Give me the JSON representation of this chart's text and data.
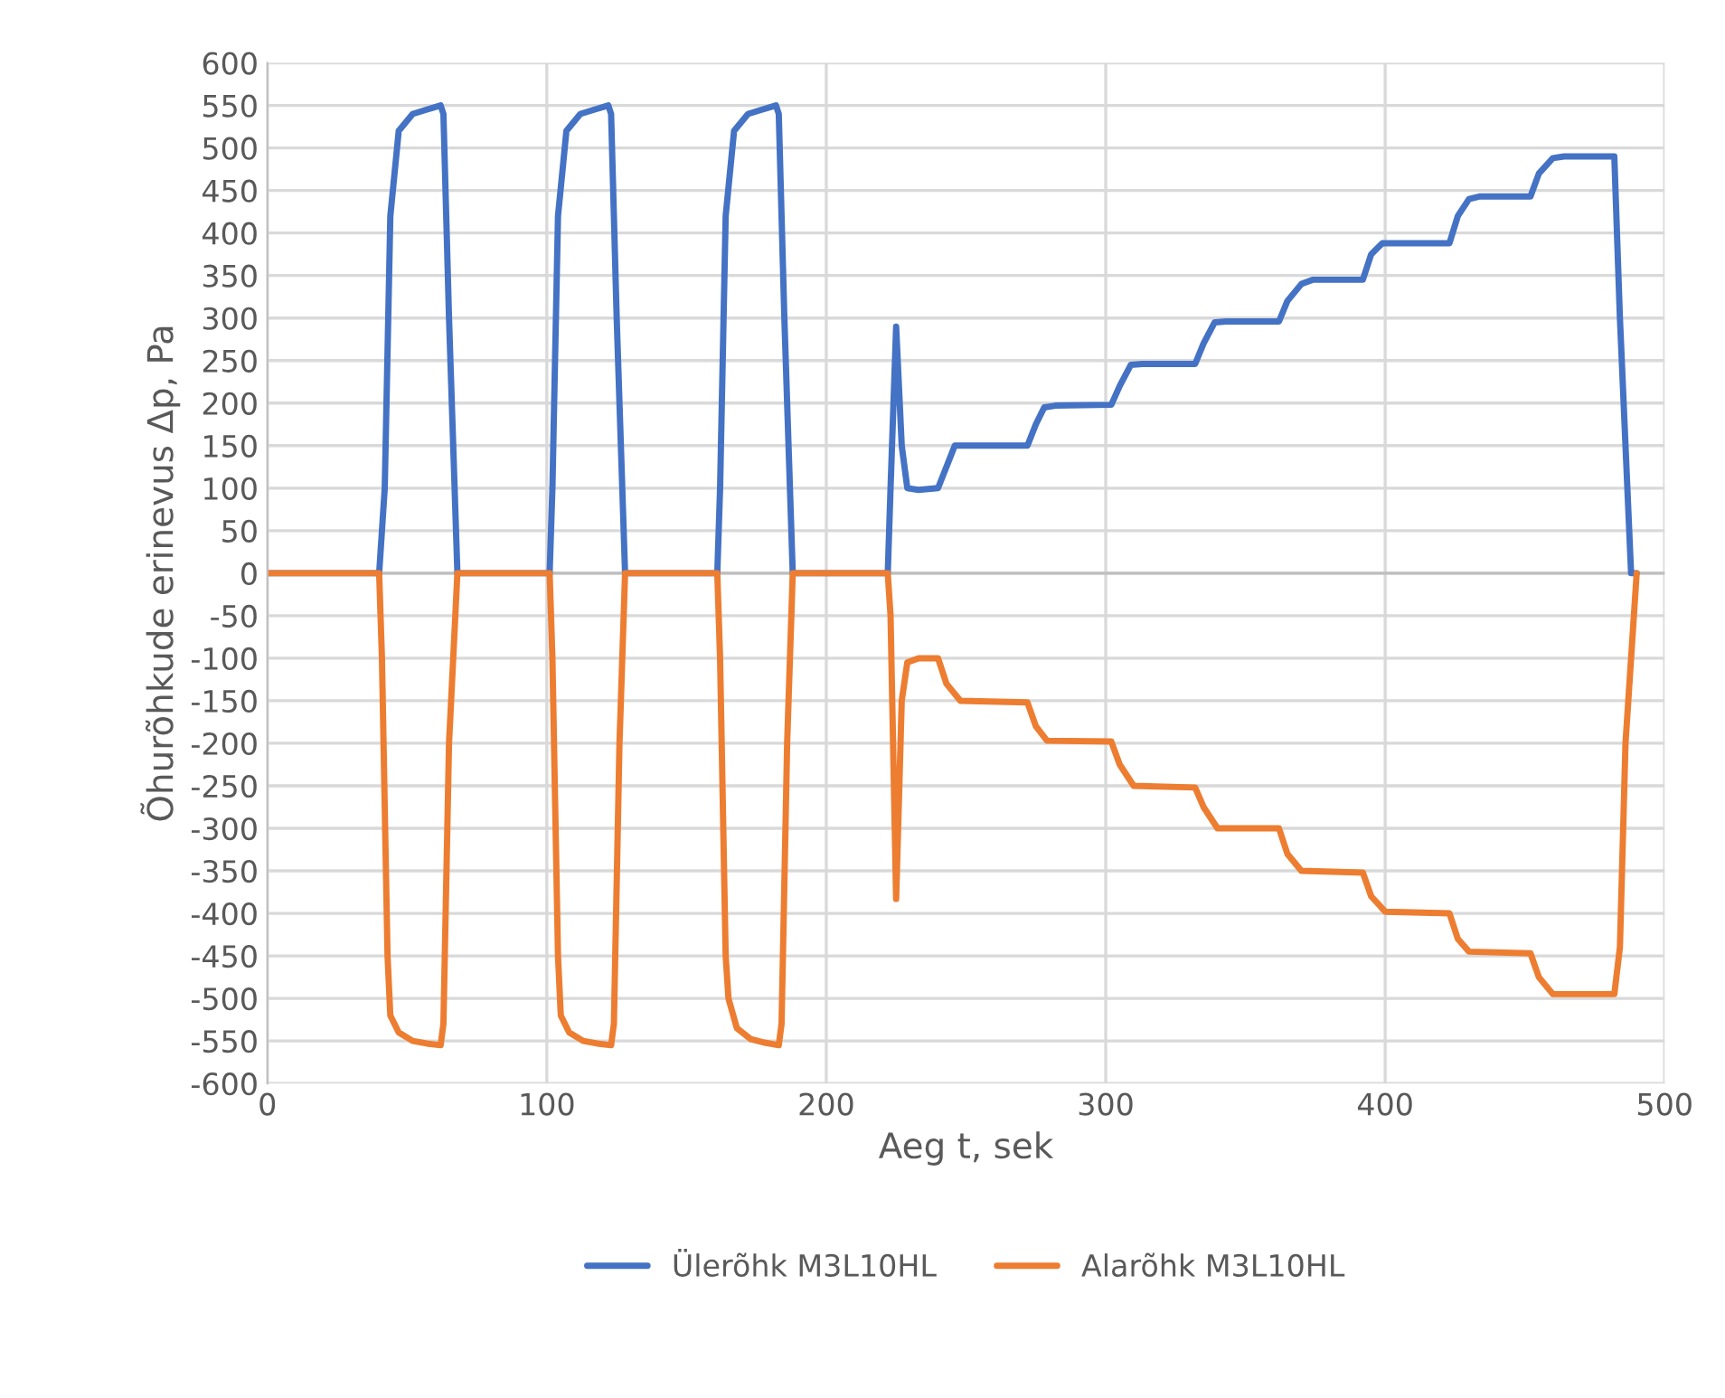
{
  "chart_data": {
    "type": "line",
    "xlabel": "Aeg t, sek",
    "ylabel": "Õhurõhkude erinevus Δp, Pa",
    "xlim": [
      0,
      500
    ],
    "xticks": [
      0,
      100,
      200,
      300,
      400,
      500
    ],
    "ylim": [
      -600,
      600
    ],
    "yticks": [
      -600,
      -550,
      -500,
      -450,
      -400,
      -350,
      -300,
      -250,
      -200,
      -150,
      -100,
      -50,
      0,
      50,
      100,
      150,
      200,
      250,
      300,
      350,
      400,
      450,
      500,
      550,
      600
    ],
    "grid": true,
    "legend": "bottom",
    "line_style": "solid",
    "marker": "none",
    "series": [
      {
        "name": "Ülerõhk M3L10HL",
        "color": "#4472c4",
        "x": [
          0,
          40,
          42,
          44,
          47,
          52,
          57,
          62,
          63,
          65,
          68,
          101,
          102,
          104,
          107,
          112,
          117,
          122,
          123,
          125,
          128,
          161,
          162,
          164,
          167,
          172,
          177,
          182,
          183,
          185,
          188,
          222,
          223,
          225,
          227,
          229,
          233,
          240,
          243,
          246,
          250,
          272,
          275,
          278,
          282,
          302,
          305,
          309,
          313,
          332,
          335,
          339,
          343,
          362,
          365,
          370,
          374,
          392,
          395,
          399,
          403,
          423,
          426,
          430,
          434,
          452,
          455,
          460,
          464,
          482,
          484,
          488,
          490
        ],
        "values": [
          0,
          0,
          100,
          420,
          520,
          540,
          545,
          550,
          540,
          300,
          0,
          0,
          100,
          420,
          520,
          540,
          545,
          550,
          540,
          300,
          0,
          0,
          100,
          420,
          520,
          540,
          545,
          550,
          540,
          300,
          0,
          0,
          100,
          290,
          150,
          100,
          98,
          100,
          125,
          150,
          150,
          150,
          175,
          195,
          197,
          198,
          220,
          245,
          246,
          246,
          270,
          295,
          296,
          296,
          320,
          340,
          345,
          345,
          375,
          388,
          388,
          388,
          420,
          440,
          443,
          443,
          470,
          488,
          490,
          490,
          300,
          0,
          0
        ]
      },
      {
        "name": "Alarõhk M3L10HL",
        "color": "#ed7d31",
        "x": [
          0,
          40,
          41,
          43,
          44,
          47,
          52,
          57,
          62,
          63,
          65,
          68,
          101,
          102,
          104,
          105,
          108,
          113,
          118,
          123,
          124,
          126,
          128,
          161,
          162,
          164,
          165,
          168,
          173,
          178,
          183,
          184,
          186,
          188,
          222,
          223,
          225,
          227,
          229,
          233,
          240,
          243,
          248,
          272,
          275,
          279,
          302,
          305,
          310,
          332,
          335,
          340,
          362,
          365,
          370,
          392,
          395,
          400,
          423,
          426,
          430,
          452,
          455,
          460,
          482,
          484,
          486,
          490
        ],
        "values": [
          0,
          0,
          -100,
          -450,
          -520,
          -540,
          -550,
          -553,
          -555,
          -530,
          -200,
          0,
          0,
          -100,
          -450,
          -520,
          -540,
          -550,
          -553,
          -555,
          -530,
          -200,
          0,
          0,
          -100,
          -450,
          -500,
          -535,
          -548,
          -552,
          -555,
          -530,
          -200,
          0,
          0,
          -50,
          -383,
          -150,
          -105,
          -100,
          -100,
          -130,
          -150,
          -152,
          -180,
          -197,
          -198,
          -225,
          -250,
          -252,
          -275,
          -300,
          -300,
          -330,
          -350,
          -352,
          -380,
          -398,
          -400,
          -430,
          -445,
          -447,
          -475,
          -495,
          -495,
          -440,
          -200,
          0
        ]
      }
    ]
  }
}
